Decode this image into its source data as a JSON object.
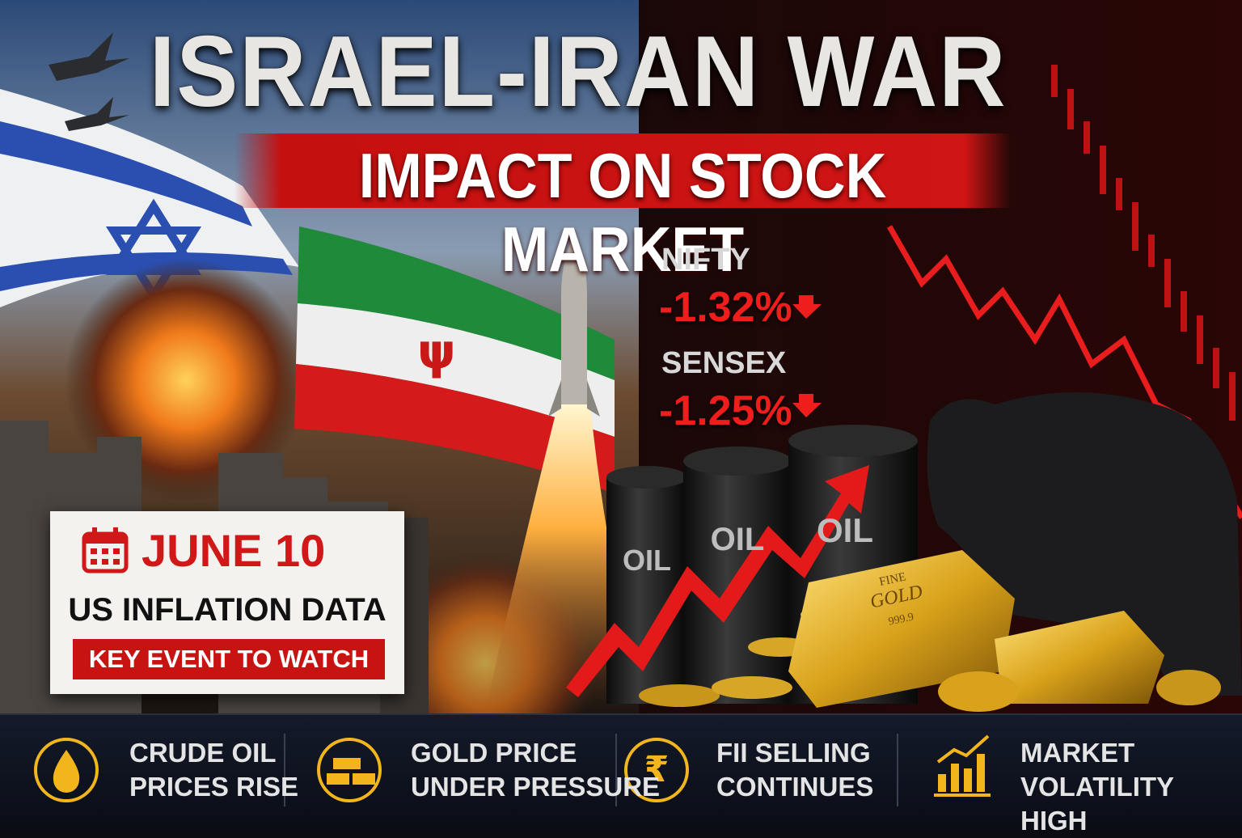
{
  "header": {
    "title": "ISRAEL-IRAN WAR",
    "subtitle": "IMPACT ON STOCK MARKET"
  },
  "indices": [
    {
      "name": "NIFTY",
      "change": "-1.32%"
    },
    {
      "name": "SENSEX",
      "change": "-1.25%"
    }
  ],
  "event": {
    "date": "JUNE 10",
    "title": "US INFLATION DATA",
    "tag": "KEY EVENT TO WATCH"
  },
  "illustration": {
    "barrel_labels": [
      "OIL",
      "OIL",
      "OIL"
    ],
    "gold_bar": [
      "FINE",
      "GOLD",
      "999.9"
    ]
  },
  "footer": {
    "items": [
      {
        "line1": "CRUDE OIL",
        "line2": "PRICES RISE"
      },
      {
        "line1": "GOLD PRICE",
        "line2": "UNDER PRESSURE"
      },
      {
        "line1": "FII SELLING",
        "line2": "CONTINUES"
      },
      {
        "line1": "MARKET",
        "line2": "VOLATILITY HIGH"
      }
    ]
  }
}
